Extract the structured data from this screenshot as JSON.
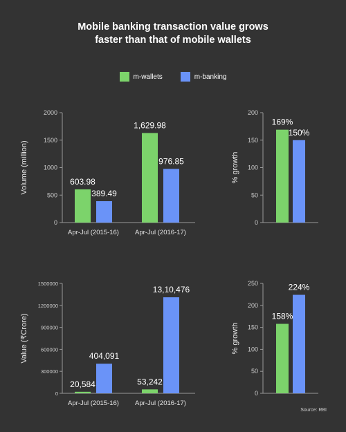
{
  "title_line1": "Mobile banking transaction value grows",
  "title_line2": "faster than that of mobile wallets",
  "source": "Source: RBI",
  "colors": {
    "background": "#333333",
    "m_wallets": "#7cd36b",
    "m_banking": "#6a93f8",
    "axis": "#9a9a9a",
    "text": "#ffffff",
    "tick_text": "#cfcfcf"
  },
  "legend": [
    {
      "label": "m-wallets",
      "color": "#7cd36b"
    },
    {
      "label": "m-banking",
      "color": "#6a93f8"
    }
  ],
  "chart_data": [
    {
      "type": "bar",
      "categories": [
        "Apr-Jul (2015-16)",
        "Apr-Jul (2016-17)"
      ],
      "series": [
        {
          "name": "m-wallets",
          "values": [
            603.98,
            1629.98
          ],
          "labels": [
            "603.98",
            "1,629.98"
          ]
        },
        {
          "name": "m-banking",
          "values": [
            389.49,
            976.85
          ],
          "labels": [
            "389.49",
            "976.85"
          ]
        }
      ],
      "ylabel": "Volume (million)",
      "ylim": [
        0,
        2000
      ],
      "yticks": [
        0,
        500,
        1000,
        1500,
        2000
      ],
      "ytick_labels": [
        "0",
        "500",
        "1000",
        "1500",
        "2000"
      ]
    },
    {
      "type": "bar",
      "categories": [
        ""
      ],
      "series": [
        {
          "name": "m-wallets",
          "values": [
            169
          ],
          "labels": [
            "169%"
          ]
        },
        {
          "name": "m-banking",
          "values": [
            150
          ],
          "labels": [
            "150%"
          ]
        }
      ],
      "ylabel": "% growth",
      "ylim": [
        0,
        200
      ],
      "yticks": [
        0,
        50,
        100,
        150,
        200
      ],
      "ytick_labels": [
        "0",
        "50",
        "100",
        "150",
        "200"
      ]
    },
    {
      "type": "bar",
      "categories": [
        "Apr-Jul (2015-16)",
        "Apr-Jul (2016-17)"
      ],
      "series": [
        {
          "name": "m-wallets",
          "values": [
            20584,
            53242
          ],
          "labels": [
            "20,584",
            "53,242"
          ]
        },
        {
          "name": "m-banking",
          "values": [
            404091,
            1310476
          ],
          "labels": [
            "404,091",
            "13,10,476"
          ]
        }
      ],
      "ylabel": "Value (₹Crore)",
      "ylim": [
        0,
        1500000
      ],
      "yticks": [
        0,
        300000,
        600000,
        900000,
        1200000,
        1500000
      ],
      "ytick_labels": [
        "0",
        "300000",
        "600000",
        "900000",
        "1200000",
        "1500000"
      ]
    },
    {
      "type": "bar",
      "categories": [
        ""
      ],
      "series": [
        {
          "name": "m-wallets",
          "values": [
            158
          ],
          "labels": [
            "158%"
          ]
        },
        {
          "name": "m-banking",
          "values": [
            224
          ],
          "labels": [
            "224%"
          ]
        }
      ],
      "ylabel": "% growth",
      "ylim": [
        0,
        250
      ],
      "yticks": [
        0,
        50,
        100,
        150,
        200,
        250
      ],
      "ytick_labels": [
        "0",
        "50",
        "100",
        "150",
        "200",
        "250"
      ]
    }
  ]
}
